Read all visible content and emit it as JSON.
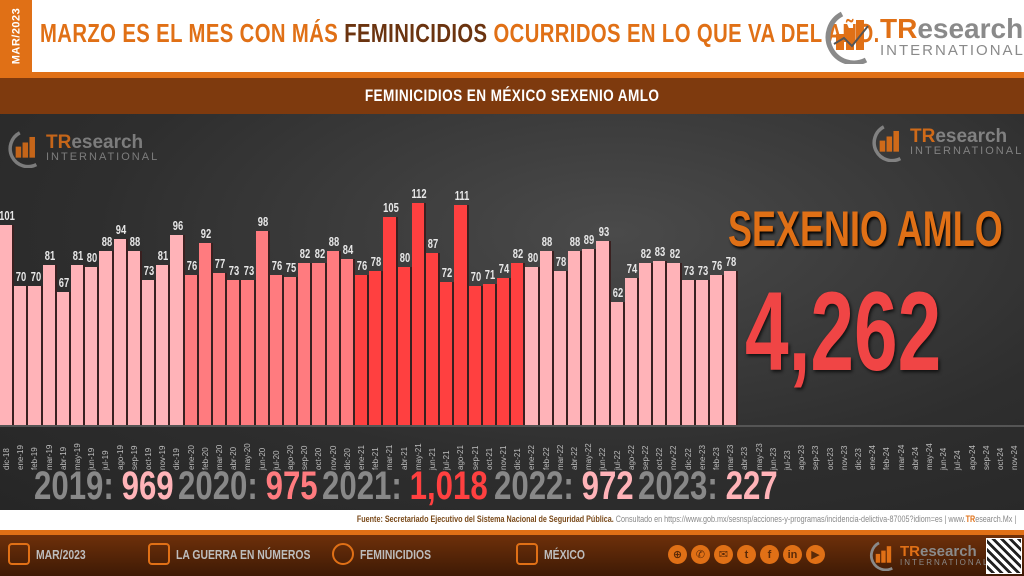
{
  "header": {
    "date_tab": "MAR/2023",
    "headline_part1": "MARZO ES EL MES CON MÁS ",
    "headline_highlight": "FEMINICIDIOS",
    "headline_part2": " OCURRIDOS EN LO QUE VA DEL AÑO.",
    "logo_tr": "TR",
    "logo_research": "esearch",
    "logo_international": "INTERNATIONAL"
  },
  "subheader": {
    "title": "FEMINICIDIOS EN MÉXICO SEXENIO AMLO"
  },
  "sexenio": {
    "title": "SEXENIO AMLO",
    "total": "4,262"
  },
  "year_totals": [
    {
      "year": "2019:",
      "value": "969",
      "color": "#ffb3b8"
    },
    {
      "year": "2020:",
      "value": "975",
      "color": "#ff7b7f"
    },
    {
      "year": "2021:",
      "value": "1,018",
      "color": "#ff4040"
    },
    {
      "year": "2022:",
      "value": "972",
      "color": "#ffb3b8"
    },
    {
      "year": "2023:",
      "value": "227",
      "color": "#ffb3b8"
    }
  ],
  "source": {
    "text": "Fuente: Secretariado Ejecutivo del Sistema Nacional de Seguridad Pública.",
    "consulted": " Consultado en https://www.gob.mx/sesnsp/acciones-y-programas/incidencia-delictiva-87005?idiom=es | www.",
    "site_tr": "TR",
    "site_rest": "esearch.Mx |"
  },
  "footer": {
    "items": [
      {
        "label": "MAR/2023",
        "icon": "calendar-icon"
      },
      {
        "label": "LA GUERRA EN NÚMEROS",
        "icon": "report-icon"
      },
      {
        "label": "FEMINICIDIOS",
        "icon": "chat-chart-icon"
      },
      {
        "label": "MÉXICO",
        "icon": "map-pin-icon"
      }
    ],
    "social": [
      "globe-icon",
      "whatsapp-icon",
      "email-icon",
      "twitter-icon",
      "facebook-icon",
      "linkedin-icon",
      "youtube-icon"
    ],
    "social_glyphs": [
      "⊕",
      "✆",
      "✉",
      "t",
      "f",
      "in",
      "▶"
    ]
  },
  "colors": {
    "accent": "#e07016",
    "dark_brown": "#7e3a0e",
    "c2019": "#ffb3b8",
    "c2020": "#ff7b7f",
    "c2021": "#ff4040",
    "c2022": "#ffb3b8",
    "c2023": "#ffb3b8"
  },
  "chart_data": {
    "type": "bar",
    "title": "FEMINICIDIOS EN MÉXICO SEXENIO AMLO",
    "xlabel": "",
    "ylabel": "",
    "categories": [
      "dic-18",
      "ene-19",
      "feb-19",
      "mar-19",
      "abr-19",
      "may-19",
      "jun-19",
      "jul-19",
      "ago-19",
      "sep-19",
      "oct-19",
      "nov-19",
      "dic-19",
      "ene-20",
      "feb-20",
      "mar-20",
      "abr-20",
      "may-20",
      "jun-20",
      "jul-20",
      "ago-20",
      "sep-20",
      "oct-20",
      "nov-20",
      "dic-20",
      "ene-21",
      "feb-21",
      "mar-21",
      "abr-21",
      "may-21",
      "jun-21",
      "jul-21",
      "ago-21",
      "sep-21",
      "oct-21",
      "nov-21",
      "dic-21",
      "ene-22",
      "feb-22",
      "mar-22",
      "abr-22",
      "may-22",
      "jun-22",
      "jul-22",
      "ago-22",
      "sep-22",
      "oct-22",
      "nov-22",
      "dic-22",
      "ene-23",
      "feb-23",
      "mar-23",
      "abr-23",
      "may-23",
      "jun-23",
      "jul-23",
      "ago-23",
      "sep-23",
      "oct-23",
      "nov-23",
      "dic-23",
      "ene-24",
      "feb-24",
      "mar-24",
      "abr-24",
      "may-24",
      "jun-24",
      "jul-24",
      "ago-24",
      "sep-24",
      "oct-24",
      "nov-24"
    ],
    "values": [
      101,
      70,
      70,
      81,
      67,
      81,
      80,
      88,
      94,
      88,
      73,
      81,
      96,
      76,
      92,
      77,
      73,
      73,
      98,
      76,
      75,
      82,
      82,
      88,
      84,
      76,
      78,
      105,
      80,
      112,
      87,
      72,
      111,
      70,
      71,
      74,
      82,
      80,
      88,
      78,
      88,
      89,
      93,
      62,
      74,
      82,
      83,
      82,
      73,
      73,
      76,
      78,
      null,
      null,
      null,
      null,
      null,
      null,
      null,
      null,
      null,
      null,
      null,
      null,
      null,
      null,
      null,
      null,
      null,
      null,
      null,
      null
    ],
    "year_totals": {
      "2019": 969,
      "2020": 975,
      "2021": 1018,
      "2022": 972,
      "2023": 227
    },
    "sexenio_total": 4262,
    "ylim": [
      0,
      120
    ],
    "grid": false,
    "legend": "none"
  }
}
